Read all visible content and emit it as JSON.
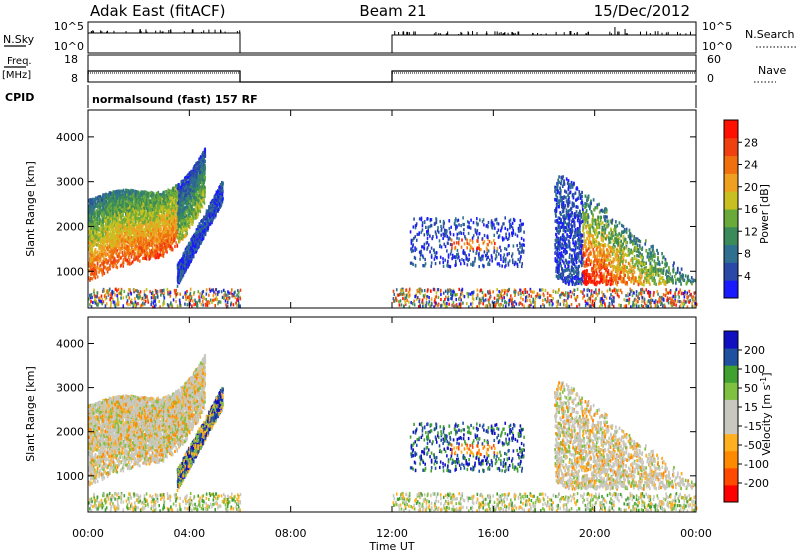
{
  "header": {
    "station": "Adak East (fitACF)",
    "beam": "Beam 21",
    "date": "15/Dec/2012"
  },
  "top_panels": {
    "nsky_label": "N.Sky",
    "nsky_ticks": [
      "10^5",
      "10^0"
    ],
    "nsearch_label": "N.Search",
    "nsearch_ticks": [
      "10^5",
      "10^0"
    ],
    "freq_label": "Freq.",
    "freq_unit": "[MHz]",
    "freq_ticks": [
      "18",
      "8"
    ],
    "nave_label": "Nave",
    "nave_ticks": [
      "60",
      "0"
    ],
    "cpid_label": "CPID",
    "cpid_text": "normalsound (fast) 157 RF"
  },
  "colors": {
    "power": [
      "#1a1aff",
      "#2a48a8",
      "#2f6f8f",
      "#3a8a5a",
      "#6aaa3a",
      "#c8c020",
      "#f0a020",
      "#f07010",
      "#f04010",
      "#ff1000"
    ],
    "velocity": [
      "#ff0000",
      "#ff4a00",
      "#ff8a00",
      "#ffb020",
      "#c8c8c0",
      "#c8c8c0",
      "#80c040",
      "#40a030",
      "#2050a0",
      "#1010c0"
    ]
  },
  "chart_data": [
    {
      "type": "heatmap",
      "name": "power",
      "ylabel": "Slant Range [km]",
      "yticks": [
        1000,
        2000,
        3000,
        4000
      ],
      "ylim": [
        180,
        4600
      ],
      "xlim_hours": [
        0,
        24
      ],
      "colorbar_label": "Power [dB]",
      "colorbar_ticks": [
        "4",
        "8",
        "12",
        "16",
        "20",
        "24",
        "28"
      ],
      "colorbar_range": [
        0,
        32
      ]
    },
    {
      "type": "heatmap",
      "name": "velocity",
      "ylabel": "Slant Range [km]",
      "yticks": [
        1000,
        2000,
        3000,
        4000
      ],
      "ylim": [
        180,
        4600
      ],
      "xlim_hours": [
        0,
        24
      ],
      "colorbar_label": "Velocity [m s^-1]",
      "colorbar_ticks": [
        "-200",
        "-100",
        "-50",
        "-15",
        "15",
        "50",
        "100",
        "200"
      ]
    },
    {
      "type": "line",
      "name": "time-axis",
      "xlabel": "Time UT",
      "xticks": [
        "00:00",
        "04:00",
        "08:00",
        "12:00",
        "16:00",
        "20:00",
        "00:00"
      ],
      "data_gap_hours": [
        6,
        12
      ]
    }
  ]
}
